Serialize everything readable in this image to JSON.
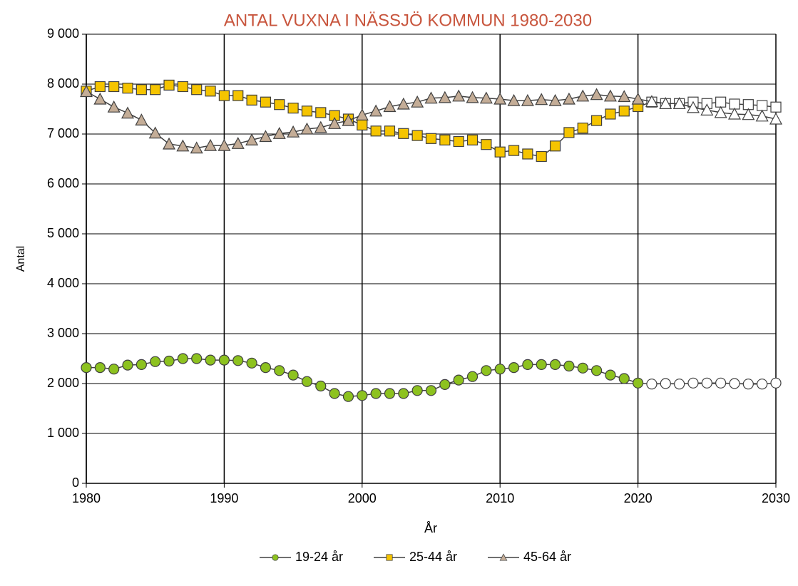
{
  "chart_data": {
    "type": "line",
    "title": "ANTAL VUXNA I NÄSSJÖ KOMMUN 1980-2030",
    "x_label": "År",
    "y_label": "Antal",
    "x": [
      1980,
      1981,
      1982,
      1983,
      1984,
      1985,
      1986,
      1987,
      1988,
      1989,
      1990,
      1991,
      1992,
      1993,
      1994,
      1995,
      1996,
      1997,
      1998,
      1999,
      2000,
      2001,
      2002,
      2003,
      2004,
      2005,
      2006,
      2007,
      2008,
      2009,
      2010,
      2011,
      2012,
      2013,
      2014,
      2015,
      2016,
      2017,
      2018,
      2019,
      2020,
      2021,
      2022,
      2023,
      2024,
      2025,
      2026,
      2027,
      2028,
      2029,
      2030
    ],
    "xlim": [
      1980,
      2030
    ],
    "xticks": [
      1980,
      1990,
      2000,
      2010,
      2020,
      2030
    ],
    "ylim": [
      0,
      9000
    ],
    "yticks": [
      {
        "value": 0,
        "label": "0"
      },
      {
        "value": 1000,
        "label": "1 000"
      },
      {
        "value": 2000,
        "label": "2 000"
      },
      {
        "value": 3000,
        "label": "3 000"
      },
      {
        "value": 4000,
        "label": "4 000"
      },
      {
        "value": 5000,
        "label": "5 000"
      },
      {
        "value": 6000,
        "label": "6 000"
      },
      {
        "value": 7000,
        "label": "7 000"
      },
      {
        "value": 8000,
        "label": "8 000"
      },
      {
        "value": 9000,
        "label": "9 000"
      }
    ],
    "grid": true,
    "legend": "bottom",
    "line_color": "#404040",
    "projected_from": 2021,
    "projected_color": "#ffffff",
    "series": [
      {
        "name": "19-24 år",
        "marker": "circle",
        "color": "#8dc21f",
        "values": [
          2320,
          2320,
          2290,
          2370,
          2380,
          2440,
          2450,
          2500,
          2500,
          2470,
          2470,
          2460,
          2410,
          2320,
          2260,
          2170,
          2040,
          1950,
          1800,
          1740,
          1760,
          1800,
          1800,
          1800,
          1860,
          1860,
          1980,
          2070,
          2140,
          2260,
          2290,
          2320,
          2380,
          2380,
          2380,
          2350,
          2310,
          2260,
          2170,
          2100,
          2010,
          1990,
          2000,
          1990,
          2010,
          2010,
          2010,
          2000,
          1990,
          1990,
          2010
        ]
      },
      {
        "name": "25-44 år",
        "marker": "square",
        "color": "#f5c400",
        "values": [
          7860,
          7950,
          7950,
          7920,
          7890,
          7890,
          7980,
          7950,
          7890,
          7860,
          7770,
          7770,
          7680,
          7640,
          7590,
          7520,
          7460,
          7430,
          7370,
          7300,
          7180,
          7060,
          7060,
          7010,
          6970,
          6910,
          6880,
          6850,
          6880,
          6790,
          6640,
          6670,
          6600,
          6550,
          6760,
          7030,
          7120,
          7270,
          7400,
          7460,
          7550,
          7640,
          7610,
          7610,
          7640,
          7610,
          7640,
          7600,
          7590,
          7570,
          7540
        ]
      },
      {
        "name": "45-64 år",
        "marker": "triangle",
        "color": "#c4ad97",
        "values": [
          7850,
          7700,
          7540,
          7420,
          7280,
          7020,
          6800,
          6760,
          6720,
          6770,
          6770,
          6810,
          6880,
          6950,
          7010,
          7040,
          7100,
          7130,
          7210,
          7270,
          7380,
          7460,
          7550,
          7600,
          7640,
          7720,
          7730,
          7760,
          7730,
          7720,
          7700,
          7670,
          7670,
          7690,
          7670,
          7700,
          7760,
          7790,
          7760,
          7750,
          7700,
          7650,
          7610,
          7610,
          7530,
          7480,
          7430,
          7400,
          7390,
          7360,
          7300
        ]
      }
    ]
  }
}
